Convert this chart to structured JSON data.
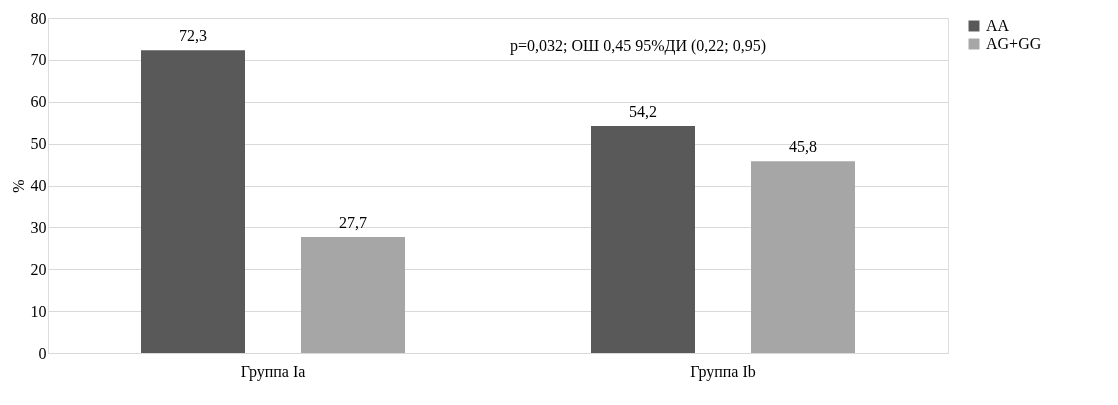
{
  "chart_data": {
    "type": "bar",
    "ylabel": "%",
    "categories": [
      "Группа Ia",
      "Группа Ib"
    ],
    "series": [
      {
        "name": "AA",
        "color": "#595959",
        "values": [
          72.3,
          54.2
        ],
        "value_labels": [
          "72,3",
          "54,2"
        ]
      },
      {
        "name": "AG+GG",
        "color": "#a6a6a6",
        "values": [
          27.7,
          45.8
        ],
        "value_labels": [
          "27,7",
          "45,8"
        ]
      }
    ],
    "ylim": [
      0,
      80
    ],
    "yticks": [
      0,
      10,
      20,
      30,
      40,
      50,
      60,
      70,
      80
    ],
    "grid": "y",
    "legend": "right",
    "annotations": [
      "p=0,032; ОШ 0,45 95%ДИ (0,22; 0,95)"
    ]
  }
}
